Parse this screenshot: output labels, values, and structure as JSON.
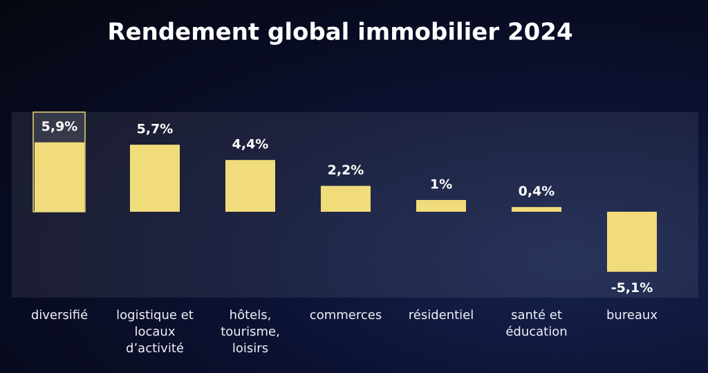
{
  "chart_data": {
    "type": "bar",
    "title": "Rendement global immobilier 2024",
    "categories": [
      "diversifié",
      "logistique et locaux d’activité",
      "hôtels, tourisme, loisirs",
      "commerces",
      "résidentiel",
      "santé et éducation",
      "bureaux"
    ],
    "values": [
      5.9,
      5.7,
      4.4,
      2.2,
      1,
      0.4,
      -5.1
    ],
    "value_labels": [
      "5,9%",
      "5,7%",
      "4,4%",
      "2,2%",
      "1%",
      "0,4%",
      "-5,1%"
    ],
    "color": "#f1dc7c"
  }
}
